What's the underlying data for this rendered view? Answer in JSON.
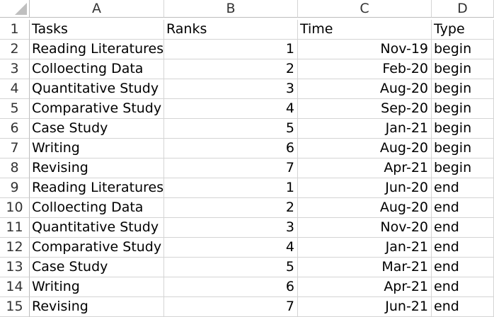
{
  "columns": [
    "A",
    "B",
    "C",
    "D"
  ],
  "rows": [
    {
      "num": "1",
      "a": "Tasks",
      "b": "Ranks",
      "c": "Time",
      "d": "Type"
    },
    {
      "num": "2",
      "a": "Reading Literatures",
      "b": "1",
      "c": "Nov-19",
      "d": "begin"
    },
    {
      "num": "3",
      "a": "Colloecting Data",
      "b": "2",
      "c": "Feb-20",
      "d": "begin"
    },
    {
      "num": "4",
      "a": "Quantitative Study",
      "b": "3",
      "c": "Aug-20",
      "d": "begin"
    },
    {
      "num": "5",
      "a": "Comparative Study",
      "b": "4",
      "c": "Sep-20",
      "d": "begin"
    },
    {
      "num": "6",
      "a": "Case Study",
      "b": "5",
      "c": "Jan-21",
      "d": "begin"
    },
    {
      "num": "7",
      "a": "Writing",
      "b": "6",
      "c": "Aug-20",
      "d": "begin"
    },
    {
      "num": "8",
      "a": "Revising",
      "b": "7",
      "c": "Apr-21",
      "d": "begin"
    },
    {
      "num": "9",
      "a": "Reading Literatures",
      "b": "1",
      "c": "Jun-20",
      "d": "end"
    },
    {
      "num": "10",
      "a": "Colloecting Data",
      "b": "2",
      "c": "Aug-20",
      "d": "end"
    },
    {
      "num": "11",
      "a": "Quantitative Study",
      "b": "3",
      "c": "Nov-20",
      "d": "end"
    },
    {
      "num": "12",
      "a": "Comparative Study",
      "b": "4",
      "c": "Jan-21",
      "d": "end"
    },
    {
      "num": "13",
      "a": "Case Study",
      "b": "5",
      "c": "Mar-21",
      "d": "end"
    },
    {
      "num": "14",
      "a": "Writing",
      "b": "6",
      "c": "Apr-21",
      "d": "end"
    },
    {
      "num": "15",
      "a": "Revising",
      "b": "7",
      "c": "Jun-21",
      "d": "end"
    }
  ]
}
